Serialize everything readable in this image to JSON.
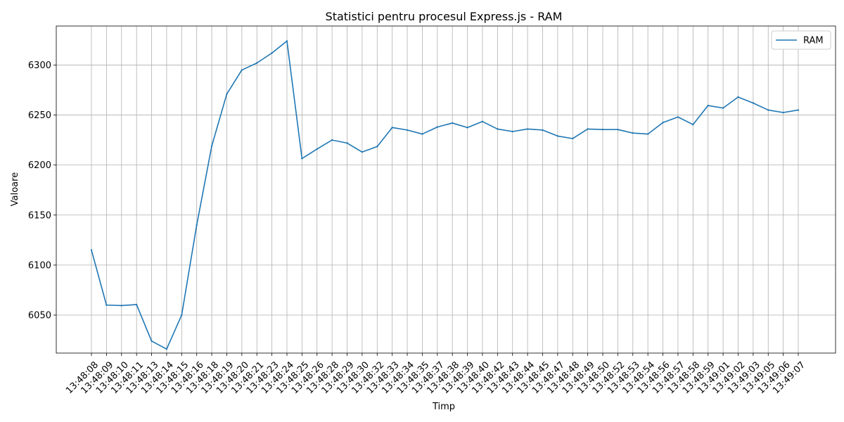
{
  "chart_data": {
    "type": "line",
    "title": "Statistici pentru procesul Express.js - RAM",
    "xlabel": "Timp",
    "ylabel": "Valoare",
    "ylim": [
      6012,
      6339
    ],
    "yticks": [
      6050,
      6100,
      6150,
      6200,
      6250,
      6300
    ],
    "grid": true,
    "legend_position": "top-right",
    "categories": [
      "13:48:08",
      "13:48:09",
      "13:48:10",
      "13:48:11",
      "13:48:13",
      "13:48:14",
      "13:48:15",
      "13:48:16",
      "13:48:18",
      "13:48:19",
      "13:48:20",
      "13:48:21",
      "13:48:23",
      "13:48:24",
      "13:48:25",
      "13:48:26",
      "13:48:28",
      "13:48:29",
      "13:48:30",
      "13:48:32",
      "13:48:33",
      "13:48:34",
      "13:48:35",
      "13:48:37",
      "13:48:38",
      "13:48:39",
      "13:48:40",
      "13:48:42",
      "13:48:43",
      "13:48:44",
      "13:48:45",
      "13:48:47",
      "13:48:48",
      "13:48:49",
      "13:48:50",
      "13:48:52",
      "13:48:53",
      "13:48:54",
      "13:48:56",
      "13:48:57",
      "13:48:58",
      "13:48:59",
      "13:49:01",
      "13:49:02",
      "13:49:03",
      "13:49:05",
      "13:49:06",
      "13:49:07"
    ],
    "series": [
      {
        "name": "RAM",
        "color": "#1f77b4",
        "values": [
          6115,
          6060,
          6059.5,
          6060.5,
          6024,
          6016,
          6050,
          6140,
          6219,
          6271,
          6295,
          6302,
          6312,
          6324,
          6206.5,
          6216,
          6225,
          6222,
          6213,
          6218.5,
          6237.5,
          6235,
          6231,
          6238,
          6242,
          6237.5,
          6243.5,
          6236,
          6233.5,
          6236,
          6235,
          6229,
          6226.5,
          6236,
          6235.5,
          6235.5,
          6232,
          6231,
          6242.5,
          6248,
          6240.5,
          6259.5,
          6257,
          6268,
          6262,
          6255,
          6252.5,
          6255
        ]
      }
    ]
  }
}
